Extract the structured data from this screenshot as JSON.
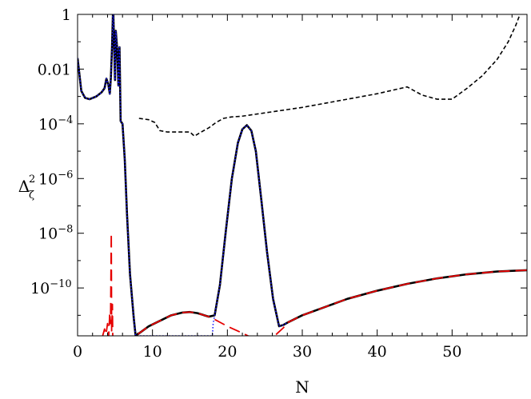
{
  "chart_data": {
    "type": "line",
    "title": "",
    "xlabel": "N",
    "ylabel": {
      "base": "Δ",
      "sub": "ζ",
      "sup": "2"
    },
    "xlim": [
      0,
      60
    ],
    "ylim_log10": [
      -11.75,
      0
    ],
    "yscale": "log",
    "grid": false,
    "legend": "none",
    "x_ticks": [
      {
        "value": 0,
        "label": "0"
      },
      {
        "value": 10,
        "label": "10"
      },
      {
        "value": 20,
        "label": "20"
      },
      {
        "value": 30,
        "label": "30"
      },
      {
        "value": 40,
        "label": "40"
      },
      {
        "value": 50,
        "label": "50"
      }
    ],
    "y_ticks": [
      {
        "log10": 0,
        "label": "1",
        "sup": ""
      },
      {
        "log10": -2,
        "label": "0.01",
        "sup": ""
      },
      {
        "log10": -4,
        "label": "10",
        "sup": "−4"
      },
      {
        "log10": -6,
        "label": "10",
        "sup": "−6"
      },
      {
        "log10": -8,
        "label": "10",
        "sup": "−8"
      },
      {
        "log10": -10,
        "label": "10",
        "sup": "−10"
      }
    ],
    "series": [
      {
        "style": "solid",
        "color": "#000000",
        "log10_y": true,
        "x": [
          0,
          0.5,
          1,
          1.6,
          2.5,
          3.2,
          3.6,
          3.85,
          4.1,
          4.3,
          4.45,
          4.6,
          4.75,
          4.85,
          5.0,
          5.1,
          5.3,
          5.45,
          5.6,
          5.75,
          6.0,
          6.3,
          6.6,
          7.0,
          7.5,
          7.75,
          8,
          9.5,
          11,
          12.5,
          14,
          15,
          16,
          17.5,
          18.3,
          19,
          19.8,
          20.6,
          21.4,
          22.0,
          22.6,
          23.2,
          23.8,
          24.5,
          25.3,
          26.1,
          26.9,
          27.5,
          28,
          30,
          33,
          36,
          40,
          44,
          48,
          52,
          56,
          60
        ],
        "y": [
          -1.6,
          -2.8,
          -3.05,
          -3.1,
          -3.0,
          -2.85,
          -2.7,
          -2.35,
          -2.55,
          -2.9,
          -2.3,
          -1.2,
          0.3,
          -0.8,
          -2.4,
          -0.6,
          -1.3,
          -2.6,
          -1.2,
          -3.9,
          -4.0,
          -5.3,
          -7.3,
          -9.5,
          -11.1,
          -11.75,
          -11.7,
          -11.4,
          -11.2,
          -11.0,
          -10.9,
          -10.88,
          -10.92,
          -11.05,
          -11.0,
          -9.9,
          -7.9,
          -6.0,
          -4.7,
          -4.2,
          -4.05,
          -4.25,
          -5.0,
          -6.7,
          -8.7,
          -10.4,
          -11.4,
          -11.35,
          -11.27,
          -11.0,
          -10.7,
          -10.4,
          -10.1,
          -9.85,
          -9.65,
          -9.5,
          -9.4,
          -9.35
        ]
      },
      {
        "style": "dotted",
        "color": "#1a1aff",
        "log10_y": true,
        "x": [
          0,
          0.5,
          1,
          1.6,
          2.5,
          3.2,
          3.6,
          3.85,
          4.1,
          4.3,
          4.45,
          4.6,
          4.75,
          4.85,
          5.0,
          5.1,
          5.3,
          5.45,
          5.6,
          5.75,
          6.0,
          6.3,
          6.6,
          7.0,
          7.5,
          7.75,
          18.0,
          18.1,
          18.3,
          19,
          19.8,
          20.6,
          21.4,
          22.0,
          22.6,
          23.2,
          23.8,
          24.5,
          25.3,
          26.1,
          26.9,
          27.5,
          28
        ],
        "y": [
          -1.6,
          -2.8,
          -3.05,
          -3.1,
          -3.0,
          -2.85,
          -2.7,
          -2.35,
          -2.55,
          -2.9,
          -2.3,
          -1.2,
          0.3,
          -0.8,
          -2.4,
          -0.6,
          -1.3,
          -2.6,
          -1.2,
          -3.9,
          -4.0,
          -5.3,
          -7.3,
          -9.5,
          -11.1,
          -11.75,
          -11.75,
          -11.3,
          -11.0,
          -9.9,
          -7.9,
          -6.0,
          -4.7,
          -4.2,
          -4.05,
          -4.25,
          -5.0,
          -6.7,
          -8.7,
          -10.4,
          -11.4,
          -11.35,
          -11.27
        ]
      },
      {
        "style": "longdash",
        "color": "#e60000",
        "log10_y": true,
        "x": [
          3.3,
          3.6,
          3.8,
          4.0,
          4.15,
          4.3,
          4.4,
          4.5,
          4.55,
          4.65,
          4.7,
          4.8
        ],
        "y": [
          -11.8,
          -11.5,
          -11.7,
          -11.3,
          -11.8,
          -10.9,
          -11.3,
          -8.0,
          -11.6,
          -10.6,
          -11.8,
          -11.8
        ]
      },
      {
        "style": "longdash",
        "color": "#e60000",
        "log10_y": true,
        "x": [
          8,
          9.5,
          11,
          12.5,
          14,
          15,
          16,
          17.5,
          18.3,
          20,
          22,
          23.5,
          25,
          26.5,
          27.5,
          28,
          30,
          33,
          36,
          40,
          44,
          48,
          52,
          56,
          60
        ],
        "y": [
          -11.7,
          -11.4,
          -11.2,
          -11.0,
          -10.9,
          -10.88,
          -10.92,
          -11.05,
          -11.15,
          -11.4,
          -11.65,
          -11.85,
          -11.9,
          -11.7,
          -11.45,
          -11.27,
          -11.0,
          -10.7,
          -10.4,
          -10.1,
          -9.85,
          -9.65,
          -9.5,
          -9.4,
          -9.35
        ]
      },
      {
        "style": "shortdash",
        "color": "#000000",
        "log10_y": true,
        "x": [
          8.2,
          9.5,
          10.3,
          11.0,
          12.0,
          13.5,
          15.0,
          15.6,
          16.5,
          17.5,
          18.5,
          19.5,
          20.5,
          22.0,
          25.0,
          30.0,
          35.0,
          40.0,
          44.0,
          46.0,
          48.0,
          50.0,
          52.0,
          54.0,
          56.0,
          57.5,
          58.5,
          59.2
        ],
        "y": [
          -3.8,
          -3.85,
          -3.95,
          -4.25,
          -4.3,
          -4.3,
          -4.3,
          -4.45,
          -4.3,
          -4.15,
          -3.95,
          -3.8,
          -3.75,
          -3.72,
          -3.6,
          -3.4,
          -3.15,
          -2.9,
          -2.65,
          -2.95,
          -3.1,
          -3.1,
          -2.7,
          -2.25,
          -1.65,
          -1.0,
          -0.4,
          0.1
        ]
      }
    ]
  }
}
